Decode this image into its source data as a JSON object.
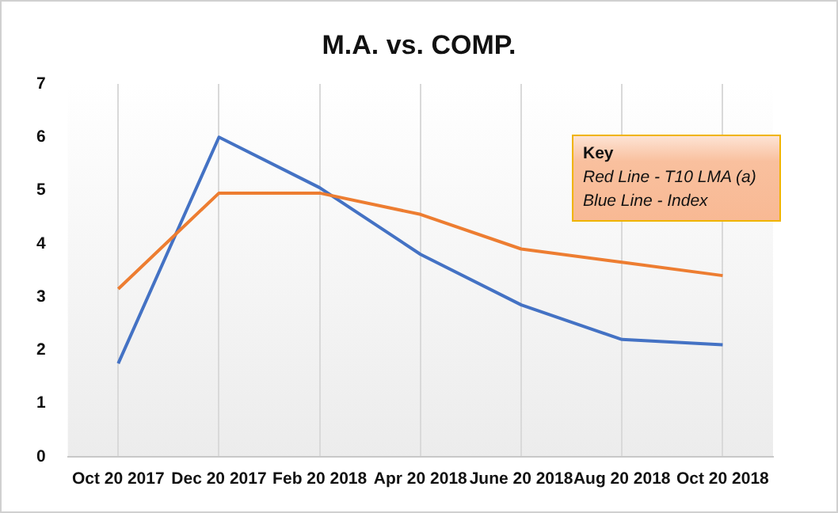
{
  "chart_data": {
    "type": "line",
    "title": "M.A. vs. COMP.",
    "categories": [
      "Oct 20 2017",
      "Dec 20 2017",
      "Feb 20 2018",
      "Apr 20 2018",
      "June 20 2018",
      "Aug 20 2018",
      "Oct 20 2018"
    ],
    "series": [
      {
        "color": "#ed7d31",
        "values": [
          3.15,
          4.95,
          4.95,
          4.55,
          3.9,
          3.65,
          3.4
        ]
      },
      {
        "color": "#4472c4",
        "values": [
          1.75,
          6.0,
          5.05,
          3.8,
          2.85,
          2.2,
          2.1
        ]
      }
    ],
    "ylim": [
      0,
      7
    ],
    "yticks": [
      0,
      1,
      2,
      3,
      4,
      5,
      6,
      7
    ],
    "grid": "x",
    "legend": false,
    "marker": "none",
    "line_style": "solid",
    "annotations": [
      "Key",
      "Red Line - T10 LMA (a)",
      "Blue Line - Index"
    ]
  }
}
